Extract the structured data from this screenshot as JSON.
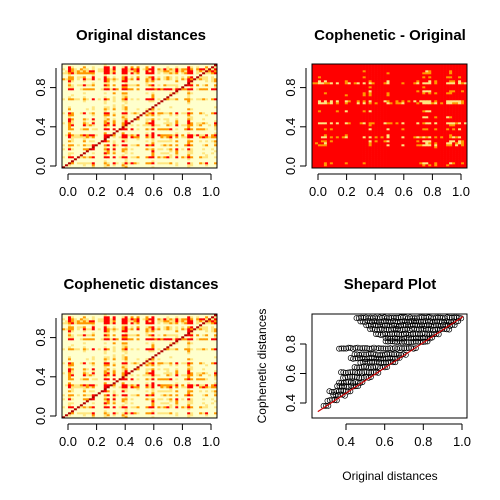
{
  "colors": {
    "heat_low": "#ffffcc",
    "heat_mid": "#ffe680",
    "heat_orange": "#ff9900",
    "heat_red": "#ff0000",
    "diagonal": "#b30000",
    "points": "#000000",
    "fit_line": "#cc0000"
  },
  "chart_data": [
    {
      "type": "heatmap",
      "title": "Original distances",
      "xlabel": "",
      "ylabel": "",
      "xlim": [
        0,
        1
      ],
      "ylim": [
        0,
        1
      ],
      "x_ticks": [
        "0.0",
        "0.2",
        "0.4",
        "0.6",
        "0.8",
        "1.0"
      ],
      "y_ticks": [
        "0.0",
        "0.4",
        "0.8"
      ],
      "palette": "heat (yellow to red), red diagonal",
      "grid": false
    },
    {
      "type": "heatmap",
      "title": "Cophenetic - Original",
      "xlabel": "",
      "ylabel": "",
      "xlim": [
        0,
        1
      ],
      "ylim": [
        0,
        1
      ],
      "x_ticks": [
        "0.0",
        "0.2",
        "0.4",
        "0.6",
        "0.8",
        "1.0"
      ],
      "y_ticks": [
        "0.0",
        "0.4",
        "0.8"
      ],
      "palette": "mostly red with orange/yellow streaks",
      "grid": false
    },
    {
      "type": "heatmap",
      "title": "Cophenetic distances",
      "xlabel": "",
      "ylabel": "",
      "xlim": [
        0,
        1
      ],
      "ylim": [
        0,
        1
      ],
      "x_ticks": [
        "0.0",
        "0.2",
        "0.4",
        "0.6",
        "0.8",
        "1.0"
      ],
      "y_ticks": [
        "0.0",
        "0.4",
        "0.8"
      ],
      "palette": "heat (yellow to red), red diagonal",
      "grid": false
    },
    {
      "type": "scatter",
      "title": "Shepard Plot",
      "xlabel": "Original distances",
      "ylabel": "Cophenetic distances",
      "xlim": [
        0.22,
        1.02
      ],
      "ylim": [
        0.2,
        1.02
      ],
      "x_ticks": [
        "0.4",
        "0.6",
        "0.8",
        "1.0"
      ],
      "y_ticks": [
        "0.4",
        "0.6",
        "0.8"
      ],
      "reference_line": {
        "from": [
          0.25,
          0.25
        ],
        "to": [
          1.0,
          1.0
        ]
      },
      "bands": [
        {
          "y": 0.99,
          "x_min": 0.45,
          "x_max": 1.0
        },
        {
          "y": 0.96,
          "x_min": 0.47,
          "x_max": 0.98
        },
        {
          "y": 0.93,
          "x_min": 0.5,
          "x_max": 0.96
        },
        {
          "y": 0.9,
          "x_min": 0.52,
          "x_max": 0.93
        },
        {
          "y": 0.86,
          "x_min": 0.55,
          "x_max": 0.88
        },
        {
          "y": 0.83,
          "x_min": 0.6,
          "x_max": 0.84
        },
        {
          "y": 0.8,
          "x_min": 0.6,
          "x_max": 0.82
        },
        {
          "y": 0.75,
          "x_min": 0.36,
          "x_max": 0.76
        },
        {
          "y": 0.7,
          "x_min": 0.44,
          "x_max": 0.71
        },
        {
          "y": 0.67,
          "x_min": 0.42,
          "x_max": 0.68
        },
        {
          "y": 0.64,
          "x_min": 0.47,
          "x_max": 0.65
        },
        {
          "y": 0.6,
          "x_min": 0.44,
          "x_max": 0.61
        },
        {
          "y": 0.56,
          "x_min": 0.37,
          "x_max": 0.57
        },
        {
          "y": 0.52,
          "x_min": 0.38,
          "x_max": 0.53
        },
        {
          "y": 0.48,
          "x_min": 0.36,
          "x_max": 0.49
        },
        {
          "y": 0.45,
          "x_min": 0.35,
          "x_max": 0.46
        },
        {
          "y": 0.41,
          "x_min": 0.31,
          "x_max": 0.42
        },
        {
          "y": 0.38,
          "x_min": 0.33,
          "x_max": 0.39
        },
        {
          "y": 0.34,
          "x_min": 0.3,
          "x_max": 0.35
        },
        {
          "y": 0.3,
          "x_min": 0.28,
          "x_max": 0.31
        }
      ],
      "grid": false
    }
  ]
}
